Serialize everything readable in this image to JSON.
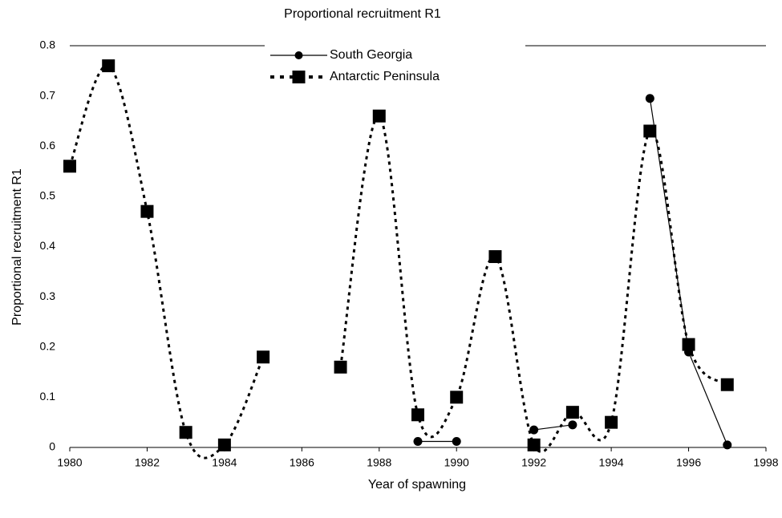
{
  "chart_data": {
    "type": "line",
    "title": "Proportional recruitment R1",
    "x_label": "Year of spawning",
    "y_label": "Proportional recruitment R1",
    "x": [
      1980,
      1981,
      1982,
      1983,
      1984,
      1985,
      1986,
      1987,
      1988,
      1989,
      1990,
      1991,
      1992,
      1993,
      1994,
      1995,
      1996,
      1997
    ],
    "series": [
      {
        "name": "South Georgia",
        "color": "#000000",
        "style": "solid",
        "marker": "circle",
        "values": [
          null,
          null,
          null,
          null,
          null,
          null,
          null,
          null,
          null,
          0.012,
          0.012,
          null,
          0.035,
          0.045,
          null,
          0.695,
          0.19,
          0.005
        ]
      },
      {
        "name": "Antarctic Peninsula",
        "color": "#000000",
        "style": "dotted",
        "marker": "square",
        "values": [
          0.56,
          0.76,
          0.47,
          0.03,
          0.005,
          0.18,
          null,
          0.16,
          0.66,
          0.065,
          0.1,
          0.38,
          0.005,
          0.07,
          0.05,
          0.63,
          0.205,
          0.125
        ]
      }
    ],
    "xlim": [
      1980,
      1998
    ],
    "xticks": [
      1980,
      1982,
      1984,
      1986,
      1988,
      1990,
      1992,
      1994,
      1996,
      1998
    ],
    "ylim": [
      0,
      0.8
    ],
    "yticks": [
      0,
      0.1,
      0.2,
      0.3,
      0.4,
      0.5,
      0.6,
      0.7,
      0.8
    ],
    "grid": false,
    "legend": "top"
  }
}
